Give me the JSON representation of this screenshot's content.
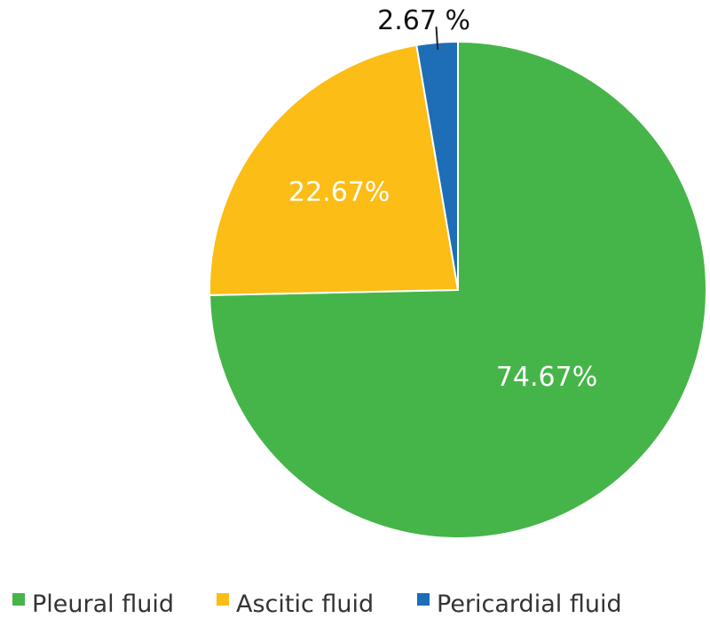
{
  "chart_data": {
    "type": "pie",
    "title": "",
    "categories": [
      "Pleural fluid",
      "Ascitic fluid",
      "Pericardial fluid"
    ],
    "values": [
      74.67,
      22.67,
      2.67
    ],
    "labels": [
      "74.67%",
      "22.67%",
      "2.67 %"
    ],
    "colors": [
      "#45b549",
      "#fbbd16",
      "#1d6db7"
    ],
    "legend_position": "bottom"
  }
}
